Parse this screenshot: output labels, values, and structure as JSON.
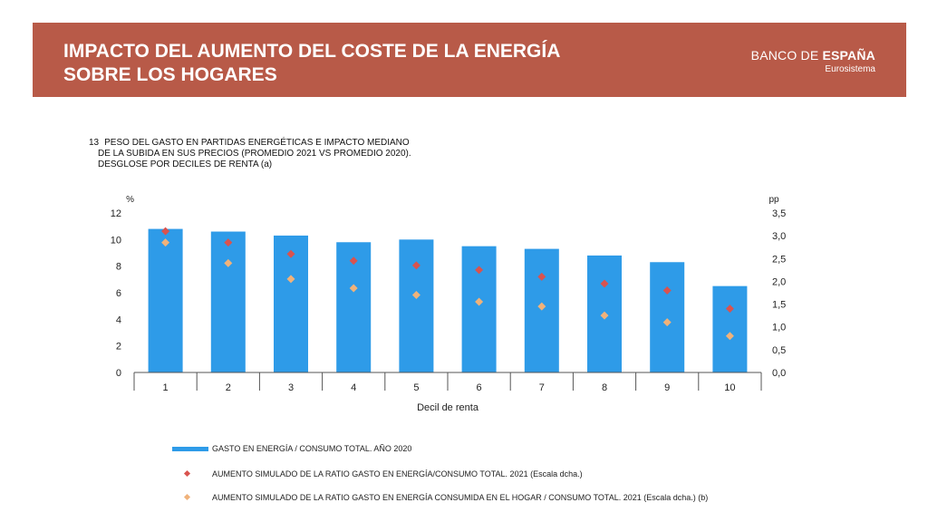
{
  "header": {
    "title_lines": [
      "IMPACTO DEL AUMENTO DEL COSTE DE LA ENERGÍA",
      "SOBRE LOS HOGARES"
    ],
    "logo_text_regular": "BANCO DE ",
    "logo_text_bold": "ESPAÑA",
    "logo_subtitle": "Eurosistema",
    "banner_color": "#b85a48"
  },
  "chart_data": {
    "type": "bar",
    "number": "13",
    "title_lines": [
      "PESO DEL GASTO EN PARTIDAS ENERGÉTICAS E IMPACTO MEDIANO",
      "DE LA SUBIDA EN SUS PRECIOS (PROMEDIO 2021 VS PROMEDIO 2020).",
      "DESGLOSE POR DECILES DE RENTA (a)"
    ],
    "xlabel": "Decil de renta",
    "y_left_unit": "%",
    "y_right_unit": "pp",
    "y_left_range": [
      0,
      12
    ],
    "y_left_ticks": [
      "0",
      "2",
      "4",
      "6",
      "8",
      "10",
      "12"
    ],
    "y_right_range": [
      0,
      3.5
    ],
    "y_right_ticks": [
      "0,0",
      "0,5",
      "1,0",
      "1,5",
      "2,0",
      "2,5",
      "3,0",
      "3,5"
    ],
    "categories": [
      "1",
      "2",
      "3",
      "4",
      "5",
      "6",
      "7",
      "8",
      "9",
      "10"
    ],
    "series": [
      {
        "name": "GASTO EN ENERGÍA / CONSUMO TOTAL. AÑO 2020",
        "kind": "bar",
        "axis": "left",
        "color": "#2e9be8",
        "values": [
          10.8,
          10.6,
          10.3,
          9.8,
          10.0,
          9.5,
          9.3,
          8.8,
          8.3,
          6.5
        ]
      },
      {
        "name": "AUMENTO SIMULADO DE LA RATIO GASTO EN ENERGÍA/CONSUMO TOTAL. 2021 (Escala dcha.)",
        "kind": "marker",
        "axis": "right",
        "color": "#d9534f",
        "values": [
          3.1,
          2.85,
          2.6,
          2.45,
          2.35,
          2.25,
          2.1,
          1.95,
          1.8,
          1.4
        ]
      },
      {
        "name": "AUMENTO SIMULADO DE LA RATIO GASTO EN ENERGÍA CONSUMIDA EN EL HOGAR / CONSUMO TOTAL. 2021 (Escala dcha.) (b)",
        "kind": "marker",
        "axis": "right",
        "color": "#f0b27a",
        "values": [
          2.85,
          2.4,
          2.05,
          1.85,
          1.7,
          1.55,
          1.45,
          1.25,
          1.1,
          0.8
        ]
      }
    ],
    "legend_position": "bottom"
  }
}
